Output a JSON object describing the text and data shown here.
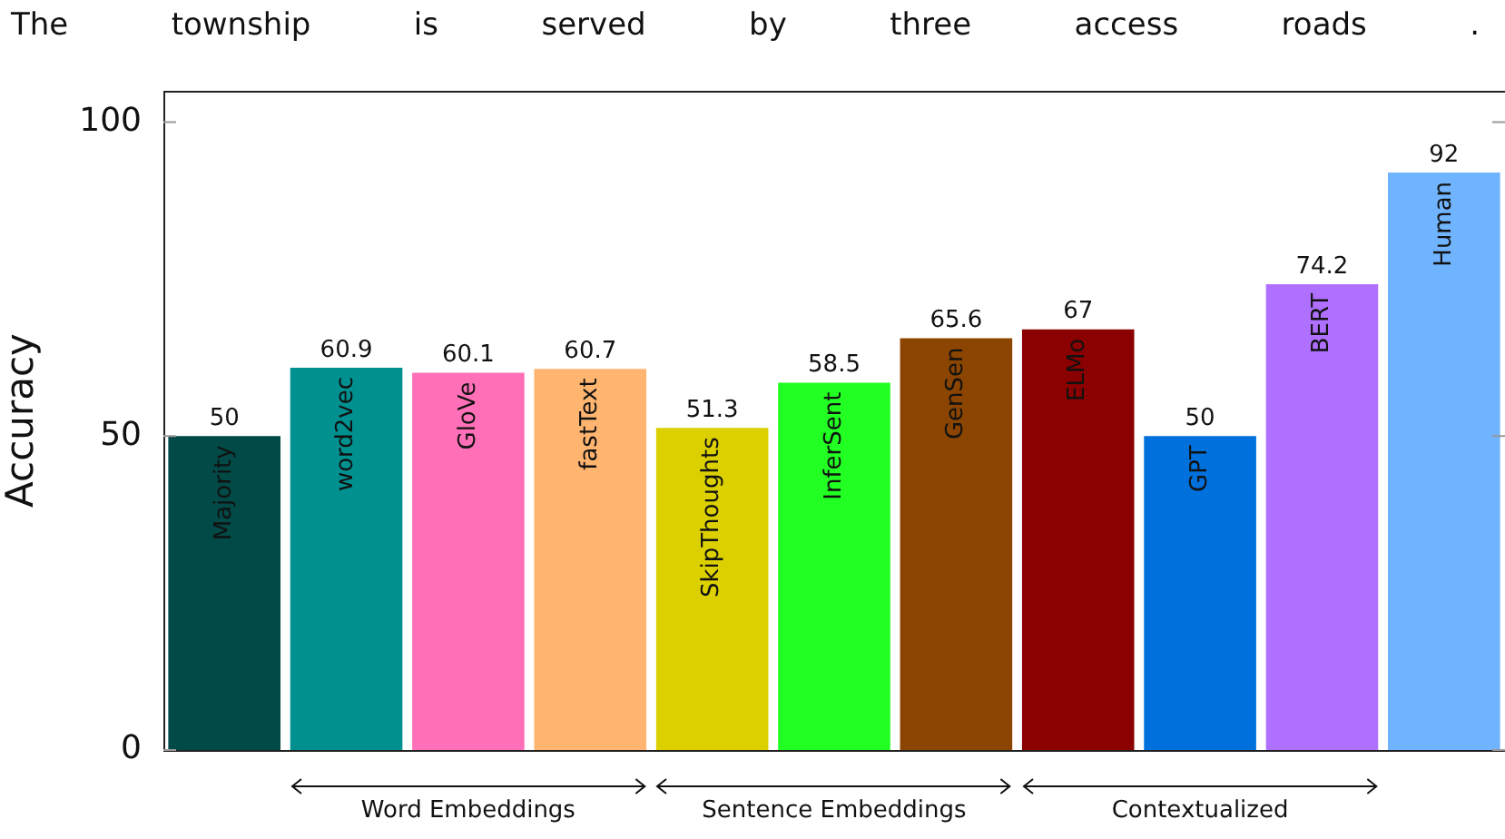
{
  "chart_data": {
    "type": "bar",
    "title": "The township is served by three access roads .",
    "ylabel": "Accuracy",
    "categories": [
      "Majority",
      "word2vec",
      "GloVe",
      "fastText",
      "SkipThoughts",
      "InferSent",
      "GenSen",
      "ELMo",
      "GPT",
      "BERT",
      "Human"
    ],
    "values": [
      50,
      60.9,
      60.1,
      60.7,
      51.3,
      58.5,
      65.6,
      67,
      50,
      74.2,
      92
    ],
    "colors": [
      "#024a47",
      "#009090",
      "#ff70b8",
      "#ffb470",
      "#dcd000",
      "#22ff22",
      "#8b4500",
      "#8b0000",
      "#0070dd",
      "#b070ff",
      "#70b4ff"
    ],
    "ylim": [
      0,
      105
    ],
    "yticks": [
      0,
      50,
      100
    ],
    "grid": false,
    "legend": false,
    "data_labels": true,
    "annotations": [
      "Word Embeddings",
      "Sentence Embeddings",
      "Contextualized"
    ]
  }
}
